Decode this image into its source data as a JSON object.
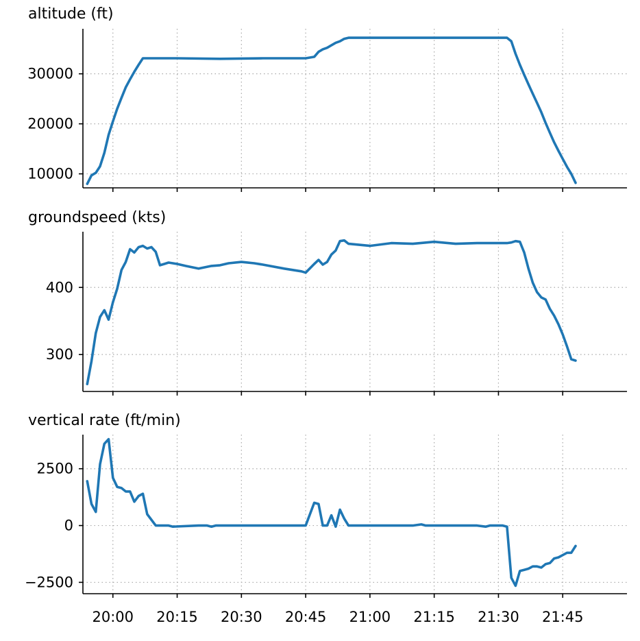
{
  "colors": {
    "series": "#1f77b4"
  },
  "x_axis": {
    "tick_labels": [
      "20:00",
      "20:15",
      "20:30",
      "20:45",
      "21:00",
      "21:15",
      "21:30",
      "21:45"
    ]
  },
  "chart_data": [
    {
      "type": "line",
      "title": "altitude (ft)",
      "xlim": [
        "19:53",
        "22:00"
      ],
      "ylim": [
        7200,
        39000
      ],
      "yticks": [
        10000,
        20000,
        30000
      ],
      "ytick_labels": [
        "10000",
        "20000",
        "30000"
      ],
      "grid": true,
      "x": [
        "19:54",
        "19:55",
        "19:56",
        "19:57",
        "19:58",
        "19:59",
        "20:00",
        "20:01",
        "20:02",
        "20:03",
        "20:04",
        "20:05",
        "20:06",
        "20:07",
        "20:15",
        "20:25",
        "20:35",
        "20:45",
        "20:47",
        "20:48",
        "20:49",
        "20:50",
        "20:51",
        "20:52",
        "20:53",
        "20:54",
        "20:55",
        "21:05",
        "21:15",
        "21:25",
        "21:30",
        "21:32",
        "21:33",
        "21:34",
        "21:35",
        "21:36",
        "21:37",
        "21:38",
        "21:39",
        "21:40",
        "21:41",
        "21:42",
        "21:43",
        "21:44",
        "21:45",
        "21:46",
        "21:47",
        "21:48"
      ],
      "y": [
        8000,
        9700,
        10200,
        11500,
        14200,
        17800,
        20500,
        23000,
        25200,
        27300,
        28900,
        30400,
        31800,
        33100,
        33100,
        33000,
        33100,
        33100,
        33400,
        34400,
        34900,
        35200,
        35700,
        36200,
        36500,
        37000,
        37200,
        37200,
        37200,
        37200,
        37200,
        37200,
        36500,
        34000,
        31800,
        29800,
        27900,
        26000,
        24200,
        22300,
        20200,
        18200,
        16300,
        14600,
        13000,
        11400,
        10000,
        8200
      ]
    },
    {
      "type": "line",
      "title": "groundspeed (kts)",
      "xlim": [
        "19:53",
        "22:00"
      ],
      "ylim": [
        245,
        483
      ],
      "yticks": [
        300,
        400
      ],
      "ytick_labels": [
        "300",
        "400"
      ],
      "grid": true,
      "x": [
        "19:54",
        "19:55",
        "19:56",
        "19:57",
        "19:58",
        "19:59",
        "20:00",
        "20:01",
        "20:02",
        "20:03",
        "20:04",
        "20:05",
        "20:06",
        "20:07",
        "20:08",
        "20:09",
        "20:10",
        "20:11",
        "20:12",
        "20:13",
        "20:15",
        "20:17",
        "20:20",
        "20:23",
        "20:25",
        "20:27",
        "20:30",
        "20:33",
        "20:35",
        "20:40",
        "20:44",
        "20:45",
        "20:47",
        "20:48",
        "20:49",
        "20:50",
        "20:51",
        "20:52",
        "20:53",
        "20:54",
        "20:55",
        "21:00",
        "21:05",
        "21:10",
        "21:15",
        "21:20",
        "21:25",
        "21:30",
        "21:32",
        "21:33",
        "21:34",
        "21:35",
        "21:36",
        "21:37",
        "21:38",
        "21:39",
        "21:40",
        "21:41",
        "21:42",
        "21:43",
        "21:44",
        "21:45",
        "21:46",
        "21:47",
        "21:48"
      ],
      "y": [
        256,
        290,
        332,
        356,
        366,
        352,
        378,
        398,
        426,
        438,
        457,
        452,
        460,
        462,
        458,
        460,
        453,
        433,
        435,
        437,
        435,
        432,
        428,
        432,
        433,
        436,
        438,
        436,
        434,
        428,
        424,
        422,
        435,
        441,
        434,
        438,
        449,
        455,
        469,
        470,
        465,
        462,
        466,
        465,
        468,
        465,
        466,
        466,
        466,
        467,
        469,
        468,
        452,
        428,
        407,
        393,
        385,
        382,
        368,
        358,
        345,
        330,
        312,
        293,
        291
      ]
    },
    {
      "type": "line",
      "title": "vertical rate (ft/min)",
      "xlim": [
        "19:53",
        "22:00"
      ],
      "ylim": [
        -3000,
        4000
      ],
      "yticks": [
        -2500,
        0,
        2500
      ],
      "ytick_labels": [
        "−2500",
        "0",
        "2500"
      ],
      "grid": true,
      "x": [
        "19:54",
        "19:55",
        "19:56",
        "19:57",
        "19:58",
        "19:59",
        "20:00",
        "20:01",
        "20:02",
        "20:03",
        "20:04",
        "20:05",
        "20:06",
        "20:07",
        "20:08",
        "20:10",
        "20:12",
        "20:13",
        "20:14",
        "20:20",
        "20:22",
        "20:23",
        "20:24",
        "20:30",
        "20:40",
        "20:45",
        "20:47",
        "20:48",
        "20:49",
        "20:50",
        "20:51",
        "20:52",
        "20:53",
        "20:54",
        "20:55",
        "21:00",
        "21:10",
        "21:12",
        "21:13",
        "21:14",
        "21:20",
        "21:25",
        "21:27",
        "21:28",
        "21:29",
        "21:31",
        "21:32",
        "21:33",
        "21:34",
        "21:35",
        "21:36",
        "21:37",
        "21:38",
        "21:39",
        "21:40",
        "21:41",
        "21:42",
        "21:43",
        "21:44",
        "21:45",
        "21:46",
        "21:47",
        "21:48"
      ],
      "y": [
        1950,
        950,
        600,
        2700,
        3600,
        3800,
        2100,
        1700,
        1650,
        1500,
        1500,
        1050,
        1300,
        1400,
        500,
        0,
        0,
        0,
        -50,
        0,
        0,
        -50,
        0,
        0,
        0,
        0,
        1000,
        950,
        0,
        0,
        450,
        -50,
        700,
        300,
        0,
        0,
        0,
        50,
        0,
        0,
        0,
        0,
        -50,
        0,
        0,
        0,
        -50,
        -2300,
        -2650,
        -2000,
        -1950,
        -1900,
        -1800,
        -1800,
        -1850,
        -1700,
        -1650,
        -1450,
        -1400,
        -1300,
        -1200,
        -1200,
        -900
      ]
    }
  ]
}
